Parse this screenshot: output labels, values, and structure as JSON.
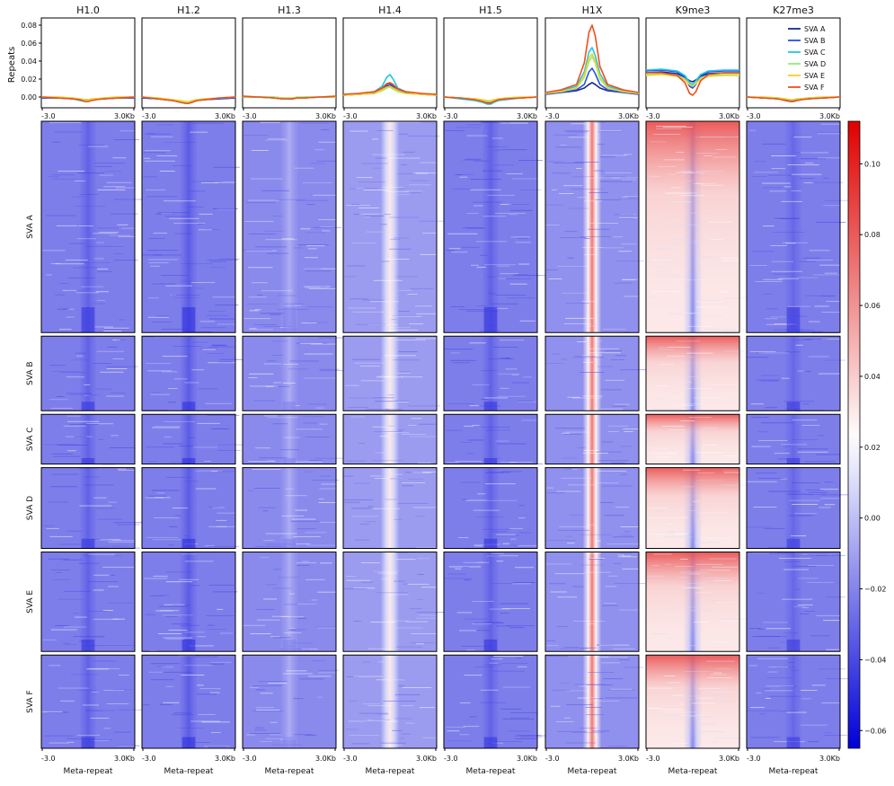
{
  "chart_data": {
    "type": "heatmap",
    "title": "",
    "profile_ylabel": "Repeats",
    "xlabel": "Meta-repeat",
    "x_tick_labels": [
      "-3.0",
      "3.0Kb"
    ],
    "profile_ylim": [
      -0.012,
      0.088
    ],
    "profile_yticks": [
      "0.00",
      "0.02",
      "0.04",
      "0.06",
      "0.08"
    ],
    "samples": [
      "H1.0",
      "H1.2",
      "H1.3",
      "H1.4",
      "H1.5",
      "H1X",
      "K9me3",
      "K27me3"
    ],
    "groups": [
      "SVA A",
      "SVA B",
      "SVA C",
      "SVA D",
      "SVA E",
      "SVA F"
    ],
    "group_row_share": [
      0.34,
      0.12,
      0.08,
      0.13,
      0.16,
      0.15
    ],
    "legend": {
      "placement": "top-right",
      "entries": [
        {
          "label": "SVA A",
          "color": "#1a2a8c"
        },
        {
          "label": "SVA B",
          "color": "#2450e8"
        },
        {
          "label": "SVA C",
          "color": "#1ec8e0"
        },
        {
          "label": "SVA D",
          "color": "#8cf07a"
        },
        {
          "label": "SVA E",
          "color": "#f5cf2a"
        },
        {
          "label": "SVA F",
          "color": "#f0501e"
        }
      ]
    },
    "colorbar": {
      "range": [
        -0.065,
        0.112
      ],
      "ticks": [
        "0.10",
        "0.08",
        "0.06",
        "0.04",
        "0.02",
        "0.00",
        "−0.02",
        "−0.04",
        "−0.06"
      ],
      "tick_values": [
        0.1,
        0.08,
        0.06,
        0.04,
        0.02,
        0.0,
        -0.02,
        -0.04,
        -0.06
      ],
      "colors": [
        "#0000d8",
        "#ffffff",
        "#e00000"
      ]
    },
    "profile_x_positions": [
      -3.0,
      -2.0,
      -1.0,
      -0.5,
      -0.2,
      0.0,
      0.2,
      0.5,
      1.0,
      2.0,
      3.0
    ],
    "profiles": {
      "H1.0": [
        [
          -0.001,
          -0.001,
          -0.002,
          -0.003,
          -0.003,
          -0.003,
          -0.003,
          -0.002,
          -0.002,
          -0.001,
          -0.001
        ],
        [
          -0.001,
          -0.001,
          -0.002,
          -0.003,
          -0.004,
          -0.004,
          -0.003,
          -0.002,
          -0.002,
          -0.001,
          -0.001
        ],
        [
          0.0,
          -0.001,
          -0.002,
          -0.004,
          -0.005,
          -0.005,
          -0.004,
          -0.003,
          -0.002,
          -0.001,
          0.0
        ],
        [
          0.0,
          0.0,
          -0.001,
          -0.003,
          -0.004,
          -0.004,
          -0.003,
          -0.002,
          -0.001,
          0.0,
          0.0
        ],
        [
          0.0,
          0.0,
          -0.001,
          -0.002,
          -0.003,
          -0.003,
          -0.002,
          -0.002,
          -0.001,
          0.0,
          0.0
        ],
        [
          0.0,
          -0.001,
          -0.002,
          -0.003,
          -0.005,
          -0.005,
          -0.004,
          -0.003,
          -0.002,
          -0.001,
          0.0
        ]
      ],
      "H1.2": [
        [
          -0.001,
          -0.002,
          -0.004,
          -0.005,
          -0.006,
          -0.006,
          -0.005,
          -0.004,
          -0.003,
          -0.002,
          -0.001
        ],
        [
          -0.001,
          -0.002,
          -0.004,
          -0.006,
          -0.007,
          -0.007,
          -0.006,
          -0.004,
          -0.003,
          -0.002,
          -0.001
        ],
        [
          0.0,
          -0.002,
          -0.004,
          -0.006,
          -0.007,
          -0.007,
          -0.006,
          -0.004,
          -0.003,
          -0.001,
          0.0
        ],
        [
          0.0,
          -0.001,
          -0.003,
          -0.005,
          -0.006,
          -0.006,
          -0.005,
          -0.003,
          -0.002,
          -0.001,
          0.0
        ],
        [
          0.0,
          -0.001,
          -0.003,
          -0.004,
          -0.005,
          -0.005,
          -0.004,
          -0.003,
          -0.002,
          -0.001,
          0.0
        ],
        [
          0.0,
          -0.002,
          -0.004,
          -0.006,
          -0.007,
          -0.007,
          -0.006,
          -0.004,
          -0.003,
          -0.001,
          0.0
        ]
      ],
      "H1.3": [
        [
          0.0,
          0.0,
          -0.001,
          -0.001,
          -0.002,
          -0.002,
          -0.002,
          -0.001,
          -0.001,
          0.0,
          0.0
        ],
        [
          0.0,
          0.0,
          -0.001,
          -0.002,
          -0.002,
          -0.002,
          -0.002,
          -0.001,
          -0.001,
          0.0,
          0.0
        ],
        [
          0.001,
          0.0,
          0.0,
          -0.001,
          -0.002,
          -0.002,
          -0.001,
          -0.001,
          0.0,
          0.0,
          0.001
        ],
        [
          0.001,
          0.0,
          0.0,
          -0.001,
          -0.001,
          -0.001,
          -0.001,
          0.0,
          0.0,
          0.0,
          0.001
        ],
        [
          0.0,
          0.0,
          -0.001,
          -0.001,
          -0.002,
          -0.002,
          -0.001,
          -0.001,
          -0.001,
          0.0,
          0.0
        ],
        [
          0.001,
          0.0,
          -0.001,
          -0.002,
          -0.002,
          -0.002,
          -0.002,
          -0.001,
          -0.001,
          0.0,
          0.001
        ]
      ],
      "H1.4": [
        [
          0.002,
          0.003,
          0.004,
          0.008,
          0.012,
          0.013,
          0.011,
          0.007,
          0.005,
          0.003,
          0.002
        ],
        [
          0.002,
          0.003,
          0.005,
          0.009,
          0.014,
          0.015,
          0.013,
          0.008,
          0.005,
          0.003,
          0.002
        ],
        [
          0.003,
          0.004,
          0.006,
          0.012,
          0.022,
          0.025,
          0.02,
          0.01,
          0.006,
          0.004,
          0.003
        ],
        [
          0.002,
          0.003,
          0.004,
          0.007,
          0.01,
          0.011,
          0.009,
          0.006,
          0.004,
          0.003,
          0.002
        ],
        [
          0.002,
          0.003,
          0.004,
          0.008,
          0.011,
          0.012,
          0.01,
          0.007,
          0.004,
          0.003,
          0.002
        ],
        [
          0.003,
          0.004,
          0.006,
          0.01,
          0.015,
          0.016,
          0.014,
          0.009,
          0.006,
          0.004,
          0.003
        ]
      ],
      "H1.5": [
        [
          0.0,
          -0.001,
          -0.002,
          -0.004,
          -0.005,
          -0.005,
          -0.004,
          -0.003,
          -0.002,
          -0.001,
          0.0
        ],
        [
          0.0,
          -0.001,
          -0.003,
          -0.005,
          -0.006,
          -0.006,
          -0.005,
          -0.003,
          -0.002,
          -0.001,
          0.0
        ],
        [
          0.0,
          -0.002,
          -0.004,
          -0.006,
          -0.008,
          -0.008,
          -0.006,
          -0.004,
          -0.003,
          -0.001,
          0.0
        ],
        [
          0.0,
          -0.001,
          -0.002,
          -0.004,
          -0.005,
          -0.005,
          -0.004,
          -0.003,
          -0.002,
          -0.001,
          0.0
        ],
        [
          0.0,
          -0.001,
          -0.002,
          -0.003,
          -0.004,
          -0.004,
          -0.003,
          -0.002,
          -0.001,
          0.0,
          0.0
        ],
        [
          0.0,
          -0.001,
          -0.003,
          -0.005,
          -0.007,
          -0.007,
          -0.005,
          -0.003,
          -0.002,
          -0.001,
          0.0
        ]
      ],
      "H1X": [
        [
          0.003,
          0.005,
          0.007,
          0.01,
          0.014,
          0.016,
          0.014,
          0.01,
          0.007,
          0.005,
          0.003
        ],
        [
          0.003,
          0.005,
          0.008,
          0.014,
          0.028,
          0.032,
          0.026,
          0.014,
          0.008,
          0.005,
          0.003
        ],
        [
          0.004,
          0.007,
          0.012,
          0.028,
          0.05,
          0.055,
          0.046,
          0.026,
          0.012,
          0.007,
          0.004
        ],
        [
          0.004,
          0.006,
          0.01,
          0.022,
          0.04,
          0.045,
          0.038,
          0.02,
          0.01,
          0.006,
          0.004
        ],
        [
          0.004,
          0.006,
          0.01,
          0.024,
          0.044,
          0.048,
          0.04,
          0.022,
          0.01,
          0.006,
          0.004
        ],
        [
          0.005,
          0.008,
          0.014,
          0.038,
          0.072,
          0.08,
          0.068,
          0.034,
          0.014,
          0.008,
          0.005
        ]
      ],
      "K9me3": [
        [
          0.027,
          0.028,
          0.026,
          0.022,
          0.018,
          0.017,
          0.019,
          0.023,
          0.026,
          0.027,
          0.027
        ],
        [
          0.029,
          0.03,
          0.028,
          0.022,
          0.012,
          0.01,
          0.014,
          0.024,
          0.028,
          0.029,
          0.029
        ],
        [
          0.03,
          0.031,
          0.029,
          0.024,
          0.016,
          0.014,
          0.018,
          0.025,
          0.029,
          0.03,
          0.03
        ],
        [
          0.025,
          0.026,
          0.024,
          0.02,
          0.014,
          0.012,
          0.015,
          0.021,
          0.024,
          0.025,
          0.025
        ],
        [
          0.024,
          0.025,
          0.023,
          0.019,
          0.014,
          0.012,
          0.015,
          0.02,
          0.023,
          0.024,
          0.024
        ],
        [
          0.027,
          0.027,
          0.024,
          0.016,
          0.004,
          0.002,
          0.006,
          0.018,
          0.025,
          0.027,
          0.027
        ]
      ],
      "K27me3": [
        [
          0.0,
          -0.001,
          -0.002,
          -0.003,
          -0.004,
          -0.004,
          -0.003,
          -0.002,
          -0.002,
          -0.001,
          0.0
        ],
        [
          0.0,
          -0.001,
          -0.002,
          -0.003,
          -0.004,
          -0.004,
          -0.003,
          -0.002,
          -0.001,
          -0.001,
          0.0
        ],
        [
          0.0,
          -0.001,
          -0.002,
          -0.004,
          -0.005,
          -0.005,
          -0.004,
          -0.003,
          -0.002,
          -0.001,
          0.0
        ],
        [
          0.0,
          0.0,
          -0.001,
          -0.002,
          -0.003,
          -0.003,
          -0.002,
          -0.002,
          -0.001,
          0.0,
          0.0
        ],
        [
          0.0,
          0.0,
          -0.001,
          -0.002,
          -0.003,
          -0.003,
          -0.002,
          -0.002,
          -0.001,
          0.0,
          0.0
        ],
        [
          0.0,
          -0.001,
          -0.002,
          -0.004,
          -0.005,
          -0.005,
          -0.004,
          -0.003,
          -0.002,
          -0.001,
          0.0
        ]
      ]
    },
    "heatmap_level": {
      "H1.0": {
        "background": -0.022,
        "center": -0.032
      },
      "H1.2": {
        "background": -0.022,
        "center": -0.034
      },
      "H1.3": {
        "background": -0.018,
        "center": -0.006
      },
      "H1.4": {
        "background": -0.012,
        "center": 0.03
      },
      "H1.5": {
        "background": -0.022,
        "center": -0.032
      },
      "H1X": {
        "background": -0.016,
        "center": 0.07
      },
      "K9me3": {
        "background": 0.03,
        "center": -0.02
      },
      "K27me3": {
        "background": -0.022,
        "center": -0.03
      }
    }
  }
}
